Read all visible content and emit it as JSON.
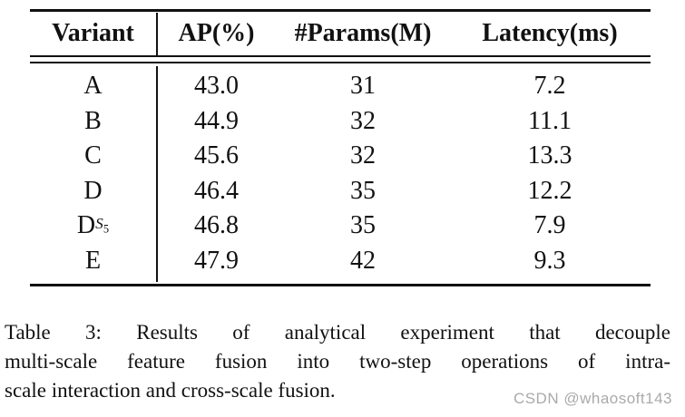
{
  "table": {
    "headers": [
      "Variant",
      "AP(%)",
      "#Params(M)",
      "Latency(ms)"
    ],
    "rows": [
      {
        "variant": {
          "base": "A"
        },
        "ap": "43.0",
        "params": "31",
        "latency": "7.2"
      },
      {
        "variant": {
          "base": "B"
        },
        "ap": "44.9",
        "params": "32",
        "latency": "11.1"
      },
      {
        "variant": {
          "base": "C"
        },
        "ap": "45.6",
        "params": "32",
        "latency": "13.3"
      },
      {
        "variant": {
          "base": "D"
        },
        "ap": "46.4",
        "params": "35",
        "latency": "12.2"
      },
      {
        "variant": {
          "base": "D",
          "sub": "S",
          "subsub": "5"
        },
        "ap": "46.8",
        "params": "35",
        "latency": "7.9"
      },
      {
        "variant": {
          "base": "E"
        },
        "ap": "47.9",
        "params": "42",
        "latency": "9.3"
      }
    ]
  },
  "caption": {
    "lines": [
      "Table 3: Results of analytical experiment that decouple",
      "multi-scale feature fusion into two-step operations of intra-",
      "scale interaction and cross-scale fusion."
    ]
  },
  "watermark": {
    "text": "CSDN @whaosoft143",
    "color": "#aaaaaa"
  },
  "colors": {
    "text": "#111111",
    "rule": "#111111",
    "background": "#ffffff"
  }
}
